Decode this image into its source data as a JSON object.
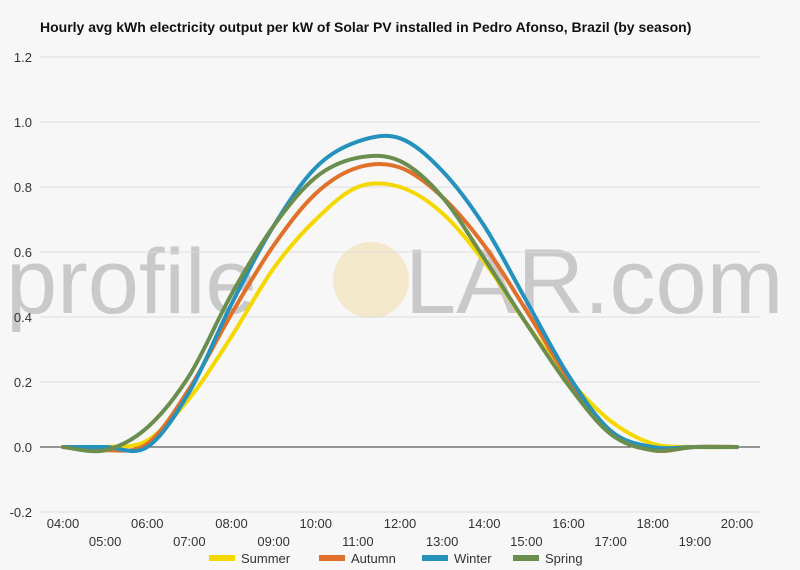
{
  "title": "Hourly avg kWh electricity output per kW of Solar PV installed in Pedro Afonso, Brazil (by season)",
  "watermark": {
    "part1": "profile",
    "part2": "LAR.com"
  },
  "chart_data": {
    "type": "line",
    "title": "Hourly avg kWh electricity output per kW of Solar PV installed in Pedro Afonso, Brazil (by season)",
    "xlabel": "",
    "ylabel": "",
    "ylim": [
      -0.2,
      1.2
    ],
    "yticks": [
      "-0.2",
      "0.0",
      "0.2",
      "0.4",
      "0.6",
      "0.8",
      "1.0",
      "1.2"
    ],
    "x": [
      "04:00",
      "05:00",
      "06:00",
      "07:00",
      "08:00",
      "09:00",
      "10:00",
      "11:00",
      "12:00",
      "13:00",
      "14:00",
      "15:00",
      "16:00",
      "17:00",
      "18:00",
      "19:00",
      "20:00"
    ],
    "grid": true,
    "legend_position": "bottom",
    "series": [
      {
        "name": "Summer",
        "color": "#f5d800",
        "values": [
          0.0,
          0.0,
          0.02,
          0.15,
          0.34,
          0.55,
          0.7,
          0.8,
          0.8,
          0.72,
          0.57,
          0.38,
          0.21,
          0.08,
          0.01,
          0.0,
          0.0
        ]
      },
      {
        "name": "Autumn",
        "color": "#e0702a",
        "values": [
          0.0,
          -0.01,
          0.01,
          0.18,
          0.41,
          0.62,
          0.78,
          0.86,
          0.86,
          0.77,
          0.62,
          0.42,
          0.21,
          0.05,
          -0.01,
          0.0,
          0.0
        ]
      },
      {
        "name": "Winter",
        "color": "#2591bd",
        "values": [
          0.0,
          0.0,
          0.0,
          0.17,
          0.44,
          0.68,
          0.86,
          0.94,
          0.95,
          0.85,
          0.68,
          0.45,
          0.22,
          0.05,
          0.0,
          0.0,
          0.0
        ]
      },
      {
        "name": "Spring",
        "color": "#6b8e4e",
        "values": [
          0.0,
          -0.01,
          0.06,
          0.22,
          0.47,
          0.68,
          0.83,
          0.89,
          0.88,
          0.77,
          0.58,
          0.38,
          0.19,
          0.04,
          -0.01,
          0.0,
          0.0
        ]
      }
    ]
  }
}
